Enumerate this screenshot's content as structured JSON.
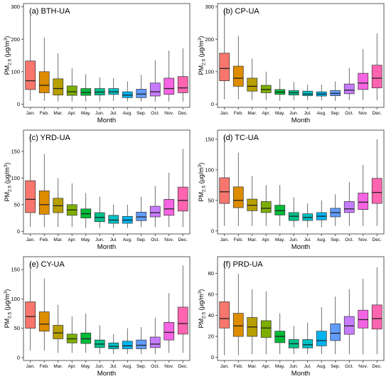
{
  "figure": {
    "ylabel_main": "PM",
    "ylabel_sub": "2.5",
    "ylabel_unit": " (μg/m",
    "ylabel_sup": "3",
    "ylabel_close": ")",
    "xlabel": "Month"
  },
  "chart_data": [
    {
      "type": "box",
      "title": "(a) BTH-UA",
      "categories": [
        "Jan.",
        "Feb.",
        "Mar.",
        "Apr.",
        "May.",
        "Jun.",
        "Jul.",
        "Aug.",
        "Sep.",
        "Oct.",
        "Nov.",
        "Dec."
      ],
      "xlabel": "Month",
      "ylabel": "PM2.5 (μg/m3)",
      "ylim": [
        -10,
        310
      ],
      "yticks": [
        0,
        100,
        200,
        300
      ],
      "boxes": [
        {
          "min": 10,
          "q1": 45,
          "median": 72,
          "q3": 133,
          "max": 275
        },
        {
          "min": 10,
          "q1": 35,
          "median": 58,
          "q3": 100,
          "max": 205
        },
        {
          "min": 8,
          "q1": 28,
          "median": 48,
          "q3": 78,
          "max": 157
        },
        {
          "min": 8,
          "q1": 27,
          "median": 38,
          "q3": 56,
          "max": 110
        },
        {
          "min": 8,
          "q1": 27,
          "median": 36,
          "q3": 48,
          "max": 92
        },
        {
          "min": 8,
          "q1": 28,
          "median": 37,
          "q3": 48,
          "max": 82
        },
        {
          "min": 10,
          "q1": 30,
          "median": 38,
          "q3": 48,
          "max": 80
        },
        {
          "min": 8,
          "q1": 20,
          "median": 28,
          "q3": 38,
          "max": 70
        },
        {
          "min": 8,
          "q1": 20,
          "median": 31,
          "q3": 46,
          "max": 90
        },
        {
          "min": 8,
          "q1": 25,
          "median": 38,
          "q3": 65,
          "max": 135
        },
        {
          "min": 8,
          "q1": 30,
          "median": 48,
          "q3": 80,
          "max": 165
        },
        {
          "min": 8,
          "q1": 35,
          "median": 50,
          "q3": 85,
          "max": 172
        }
      ]
    },
    {
      "type": "box",
      "title": "(b) CP-UA",
      "categories": [
        "Jan.",
        "Feb.",
        "Mar.",
        "Apr.",
        "May.",
        "Jun.",
        "Jul.",
        "Aug.",
        "Sep.",
        "Oct.",
        "Nov.",
        "Dec."
      ],
      "xlabel": "Month",
      "ylabel": "PM2.5 (μg/m3)",
      "ylim": [
        -10,
        310
      ],
      "yticks": [
        0,
        100,
        200,
        300
      ],
      "boxes": [
        {
          "min": 15,
          "q1": 72,
          "median": 110,
          "q3": 157,
          "max": 290
        },
        {
          "min": 15,
          "q1": 55,
          "median": 80,
          "q3": 117,
          "max": 210
        },
        {
          "min": 12,
          "q1": 40,
          "median": 55,
          "q3": 80,
          "max": 140
        },
        {
          "min": 12,
          "q1": 35,
          "median": 45,
          "q3": 58,
          "max": 100
        },
        {
          "min": 10,
          "q1": 30,
          "median": 37,
          "q3": 45,
          "max": 78
        },
        {
          "min": 12,
          "q1": 28,
          "median": 35,
          "q3": 42,
          "max": 68
        },
        {
          "min": 12,
          "q1": 26,
          "median": 31,
          "q3": 40,
          "max": 60
        },
        {
          "min": 12,
          "q1": 25,
          "median": 31,
          "q3": 38,
          "max": 60
        },
        {
          "min": 10,
          "q1": 26,
          "median": 33,
          "q3": 42,
          "max": 70
        },
        {
          "min": 12,
          "q1": 32,
          "median": 43,
          "q3": 62,
          "max": 112
        },
        {
          "min": 12,
          "q1": 45,
          "median": 65,
          "q3": 95,
          "max": 170
        },
        {
          "min": 12,
          "q1": 50,
          "median": 80,
          "q3": 120,
          "max": 218
        }
      ]
    },
    {
      "type": "box",
      "title": "(c) YRD-UA",
      "categories": [
        "Jan.",
        "Feb.",
        "Mar.",
        "Apr.",
        "May.",
        "Jun.",
        "Jul.",
        "Aug.",
        "Sep.",
        "Oct.",
        "Nov.",
        "Dec."
      ],
      "xlabel": "Month",
      "ylabel": "PM2.5 (μg/m3)",
      "ylim": [
        -5,
        190
      ],
      "yticks": [
        0,
        50,
        100,
        150
      ],
      "boxes": [
        {
          "min": 8,
          "q1": 35,
          "median": 60,
          "q3": 95,
          "max": 183
        },
        {
          "min": 8,
          "q1": 32,
          "median": 50,
          "q3": 76,
          "max": 145
        },
        {
          "min": 8,
          "q1": 35,
          "median": 48,
          "q3": 62,
          "max": 100
        },
        {
          "min": 8,
          "q1": 30,
          "median": 40,
          "q3": 50,
          "max": 90
        },
        {
          "min": 6,
          "q1": 25,
          "median": 33,
          "q3": 42,
          "max": 72
        },
        {
          "min": 6,
          "q1": 18,
          "median": 26,
          "q3": 35,
          "max": 65
        },
        {
          "min": 6,
          "q1": 15,
          "median": 21,
          "q3": 30,
          "max": 50
        },
        {
          "min": 6,
          "q1": 15,
          "median": 21,
          "q3": 28,
          "max": 50
        },
        {
          "min": 8,
          "q1": 20,
          "median": 27,
          "q3": 36,
          "max": 65
        },
        {
          "min": 8,
          "q1": 27,
          "median": 35,
          "q3": 47,
          "max": 85
        },
        {
          "min": 8,
          "q1": 30,
          "median": 42,
          "q3": 60,
          "max": 110
        },
        {
          "min": 8,
          "q1": 38,
          "median": 58,
          "q3": 83,
          "max": 155
        }
      ]
    },
    {
      "type": "box",
      "title": "(d) TC-UA",
      "categories": [
        "Jan.",
        "Feb.",
        "Mar.",
        "Apr.",
        "May.",
        "Jun.",
        "Jul.",
        "Aug.",
        "Sep.",
        "Oct.",
        "Nov.",
        "Dec."
      ],
      "xlabel": "Month",
      "ylabel": "PM2.5 (μg/m3)",
      "ylim": [
        -5,
        165
      ],
      "yticks": [
        0,
        50,
        100,
        150
      ],
      "boxes": [
        {
          "min": 8,
          "q1": 45,
          "median": 64,
          "q3": 87,
          "max": 156
        },
        {
          "min": 8,
          "q1": 38,
          "median": 50,
          "q3": 72,
          "max": 128
        },
        {
          "min": 8,
          "q1": 33,
          "median": 42,
          "q3": 52,
          "max": 90
        },
        {
          "min": 8,
          "q1": 30,
          "median": 37,
          "q3": 48,
          "max": 75
        },
        {
          "min": 8,
          "q1": 26,
          "median": 33,
          "q3": 42,
          "max": 75
        },
        {
          "min": 6,
          "q1": 17,
          "median": 24,
          "q3": 30,
          "max": 55
        },
        {
          "min": 6,
          "q1": 17,
          "median": 22,
          "q3": 28,
          "max": 45
        },
        {
          "min": 6,
          "q1": 18,
          "median": 24,
          "q3": 30,
          "max": 50
        },
        {
          "min": 8,
          "q1": 23,
          "median": 30,
          "q3": 37,
          "max": 60
        },
        {
          "min": 8,
          "q1": 30,
          "median": 36,
          "q3": 48,
          "max": 80
        },
        {
          "min": 8,
          "q1": 35,
          "median": 47,
          "q3": 62,
          "max": 108
        },
        {
          "min": 8,
          "q1": 45,
          "median": 63,
          "q3": 86,
          "max": 150
        }
      ]
    },
    {
      "type": "box",
      "title": "(e) CY-UA",
      "categories": [
        "Jan.",
        "Feb.",
        "Mar.",
        "Apr.",
        "May.",
        "Jun.",
        "Jul.",
        "Aug.",
        "Sep.",
        "Oct.",
        "Nov.",
        "Dec."
      ],
      "xlabel": "Month",
      "ylabel": "PM2.5 (μg/m3)",
      "ylim": [
        -5,
        172
      ],
      "yticks": [
        0,
        50,
        100,
        150
      ],
      "boxes": [
        {
          "min": 12,
          "q1": 50,
          "median": 70,
          "q3": 95,
          "max": 163
        },
        {
          "min": 12,
          "q1": 45,
          "median": 57,
          "q3": 78,
          "max": 135
        },
        {
          "min": 8,
          "q1": 32,
          "median": 42,
          "q3": 55,
          "max": 90
        },
        {
          "min": 8,
          "q1": 25,
          "median": 32,
          "q3": 40,
          "max": 70
        },
        {
          "min": 8,
          "q1": 24,
          "median": 32,
          "q3": 42,
          "max": 75
        },
        {
          "min": 6,
          "q1": 17,
          "median": 23,
          "q3": 30,
          "max": 55
        },
        {
          "min": 6,
          "q1": 15,
          "median": 19,
          "q3": 25,
          "max": 40
        },
        {
          "min": 6,
          "q1": 15,
          "median": 20,
          "q3": 28,
          "max": 50
        },
        {
          "min": 6,
          "q1": 15,
          "median": 21,
          "q3": 30,
          "max": 52
        },
        {
          "min": 6,
          "q1": 17,
          "median": 23,
          "q3": 35,
          "max": 68
        },
        {
          "min": 8,
          "q1": 30,
          "median": 43,
          "q3": 60,
          "max": 110
        },
        {
          "min": 8,
          "q1": 40,
          "median": 58,
          "q3": 86,
          "max": 157
        }
      ]
    },
    {
      "type": "box",
      "title": "(f) PRD-UA",
      "categories": [
        "Jan.",
        "Feb.",
        "Mar.",
        "Apr.",
        "May.",
        "Jun.",
        "Jul.",
        "Aug.",
        "Sep.",
        "Oct.",
        "Nov.",
        "Dec."
      ],
      "xlabel": "Month",
      "ylabel": "PM2.5 (μg/m3)",
      "ylim": [
        -3,
        96
      ],
      "yticks": [
        0,
        20,
        40,
        60,
        80
      ],
      "boxes": [
        {
          "min": 2,
          "q1": 28,
          "median": 37,
          "q3": 53,
          "max": 92
        },
        {
          "min": 2,
          "q1": 20,
          "median": 30,
          "q3": 42,
          "max": 80
        },
        {
          "min": 3,
          "q1": 20,
          "median": 29,
          "q3": 38,
          "max": 65
        },
        {
          "min": 3,
          "q1": 19,
          "median": 28,
          "q3": 35,
          "max": 63
        },
        {
          "min": 3,
          "q1": 14,
          "median": 20,
          "q3": 25,
          "max": 42
        },
        {
          "min": 3,
          "q1": 9,
          "median": 13,
          "q3": 17,
          "max": 30
        },
        {
          "min": 3,
          "q1": 9,
          "median": 12,
          "q3": 17,
          "max": 33
        },
        {
          "min": 3,
          "q1": 11,
          "median": 16,
          "q3": 25,
          "max": 48
        },
        {
          "min": 3,
          "q1": 16,
          "median": 23,
          "q3": 32,
          "max": 58
        },
        {
          "min": 3,
          "q1": 22,
          "median": 30,
          "q3": 39,
          "max": 65
        },
        {
          "min": 3,
          "q1": 28,
          "median": 36,
          "q3": 45,
          "max": 75
        },
        {
          "min": 3,
          "q1": 27,
          "median": 37,
          "q3": 50,
          "max": 86
        }
      ]
    }
  ],
  "colors": [
    "#F8766D",
    "#DE8C00",
    "#B79F00",
    "#7CAE00",
    "#00BA38",
    "#00C08B",
    "#00BFC4",
    "#00B4F0",
    "#619CFF",
    "#C77CFF",
    "#F564E3",
    "#FF64B0"
  ]
}
